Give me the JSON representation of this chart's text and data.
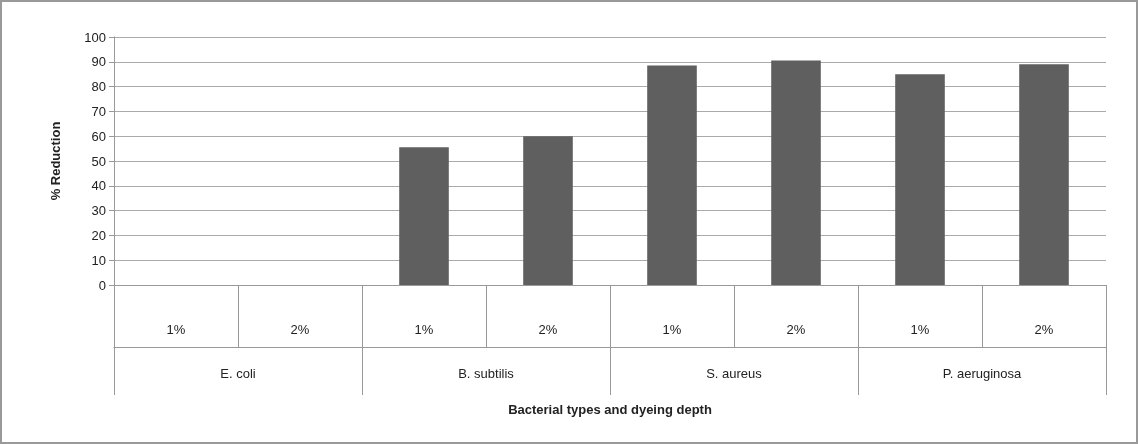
{
  "chart_data": {
    "type": "bar",
    "xlabel": "Bacterial types and dyeing depth",
    "ylabel": "% Reduction",
    "categories": [
      "1%",
      "2%",
      "1%",
      "2%",
      "1%",
      "2%",
      "1%",
      "2%"
    ],
    "annotations": [
      "E. coli",
      "B. subtilis",
      "S. aureus",
      "P. aeruginosa"
    ],
    "values": [
      0,
      0,
      55.5,
      60,
      88.5,
      90.5,
      85,
      89
    ],
    "color": "#5f5f5f",
    "ylim": [
      0,
      100
    ],
    "yticks": [
      0,
      10,
      20,
      30,
      40,
      50,
      60,
      70,
      80,
      90,
      100
    ],
    "grid": "y"
  }
}
